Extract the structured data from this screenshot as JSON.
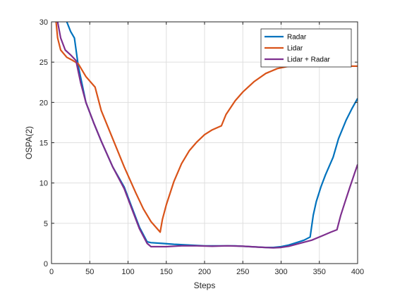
{
  "chart_data": {
    "type": "line",
    "title": "",
    "xlabel": "Steps",
    "ylabel": "OSPA(2)",
    "xlim": [
      0,
      400
    ],
    "ylim": [
      0,
      30
    ],
    "xticks": [
      0,
      50,
      100,
      150,
      200,
      250,
      300,
      350,
      400
    ],
    "yticks": [
      0,
      5,
      10,
      15,
      20,
      25,
      30
    ],
    "grid": true,
    "legend_position": "top-right",
    "series": [
      {
        "name": "Radar",
        "color": "#0072BD",
        "points": [
          [
            18,
            31
          ],
          [
            20,
            30
          ],
          [
            25,
            28.8
          ],
          [
            30,
            28
          ],
          [
            35,
            24.5
          ],
          [
            45,
            20
          ],
          [
            55,
            17.5
          ],
          [
            65,
            15.2
          ],
          [
            80,
            12
          ],
          [
            95,
            9.5
          ],
          [
            105,
            7
          ],
          [
            115,
            4.5
          ],
          [
            125,
            2.7
          ],
          [
            130,
            2.6
          ],
          [
            145,
            2.5
          ],
          [
            160,
            2.4
          ],
          [
            180,
            2.3
          ],
          [
            200,
            2.2
          ],
          [
            220,
            2.2
          ],
          [
            240,
            2.2
          ],
          [
            260,
            2.1
          ],
          [
            280,
            2.0
          ],
          [
            290,
            2.0
          ],
          [
            300,
            2.1
          ],
          [
            310,
            2.3
          ],
          [
            320,
            2.6
          ],
          [
            330,
            2.9
          ],
          [
            338,
            3.3
          ],
          [
            342,
            6
          ],
          [
            346,
            7.7
          ],
          [
            352,
            9.5
          ],
          [
            358,
            11
          ],
          [
            368,
            13.2
          ],
          [
            375,
            15.5
          ],
          [
            385,
            17.8
          ],
          [
            393,
            19.3
          ],
          [
            400,
            20.5
          ]
        ]
      },
      {
        "name": "Lidar",
        "color": "#D95319",
        "points": [
          [
            5,
            31
          ],
          [
            8,
            28
          ],
          [
            12,
            26.5
          ],
          [
            20,
            25.6
          ],
          [
            28,
            25.2
          ],
          [
            35,
            24.8
          ],
          [
            45,
            23.2
          ],
          [
            57,
            21.9
          ],
          [
            65,
            19
          ],
          [
            80,
            15.5
          ],
          [
            95,
            12
          ],
          [
            110,
            8.8
          ],
          [
            120,
            6.8
          ],
          [
            130,
            5.2
          ],
          [
            142,
            3.9
          ],
          [
            145,
            5.5
          ],
          [
            150,
            7.3
          ],
          [
            160,
            10.2
          ],
          [
            170,
            12.4
          ],
          [
            180,
            14
          ],
          [
            190,
            15.1
          ],
          [
            200,
            16
          ],
          [
            210,
            16.6
          ],
          [
            222,
            17.1
          ],
          [
            228,
            18.5
          ],
          [
            240,
            20.2
          ],
          [
            250,
            21.3
          ],
          [
            265,
            22.6
          ],
          [
            280,
            23.6
          ],
          [
            295,
            24.2
          ],
          [
            310,
            24.5
          ],
          [
            320,
            24.5
          ],
          [
            400,
            24.5
          ]
        ]
      },
      {
        "name": "Lidar + Radar",
        "color": "#7E2F8E",
        "points": [
          [
            6,
            31
          ],
          [
            8,
            30
          ],
          [
            12,
            28
          ],
          [
            18,
            26.5
          ],
          [
            25,
            25.9
          ],
          [
            32,
            25.2
          ],
          [
            38,
            22.5
          ],
          [
            45,
            20
          ],
          [
            55,
            17.5
          ],
          [
            65,
            15.2
          ],
          [
            80,
            12
          ],
          [
            95,
            9.3
          ],
          [
            105,
            6.8
          ],
          [
            115,
            4.3
          ],
          [
            125,
            2.5
          ],
          [
            130,
            2.1
          ],
          [
            150,
            2.1
          ],
          [
            170,
            2.2
          ],
          [
            190,
            2.2
          ],
          [
            210,
            2.15
          ],
          [
            230,
            2.2
          ],
          [
            250,
            2.15
          ],
          [
            270,
            2.05
          ],
          [
            290,
            1.95
          ],
          [
            300,
            2.0
          ],
          [
            310,
            2.15
          ],
          [
            320,
            2.4
          ],
          [
            340,
            2.9
          ],
          [
            355,
            3.5
          ],
          [
            365,
            3.9
          ],
          [
            373,
            4.2
          ],
          [
            378,
            6
          ],
          [
            383,
            7.5
          ],
          [
            390,
            9.5
          ],
          [
            396,
            11.2
          ],
          [
            400,
            12.3
          ]
        ]
      }
    ]
  }
}
